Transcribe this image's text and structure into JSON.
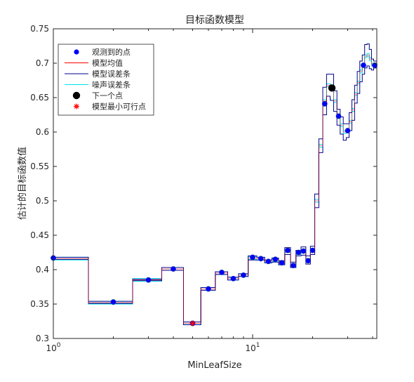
{
  "chart_data": {
    "type": "line",
    "title": "目标函数模型",
    "xlabel": "MinLeafSize",
    "ylabel": "估计的目标函数值",
    "xscale": "log",
    "xlim": [
      1,
      42
    ],
    "ylim": [
      0.3,
      0.75
    ],
    "x_ticks": [
      {
        "value": 1,
        "base": "10",
        "exp": "0"
      },
      {
        "value": 10,
        "base": "10",
        "exp": "1"
      }
    ],
    "y_ticks": [
      0.3,
      0.35,
      0.4,
      0.45,
      0.5,
      0.55,
      0.6,
      0.65,
      0.7,
      0.75
    ],
    "grid": false,
    "legend_position": "top-left",
    "legend": [
      {
        "label": "观测到的点",
        "marker": "dot",
        "color": "#0000ff"
      },
      {
        "label": "模型均值",
        "marker": "line",
        "color": "#ff0000"
      },
      {
        "label": "模型误差条",
        "marker": "line",
        "color": "#00008b"
      },
      {
        "label": "噪声误差条",
        "marker": "line",
        "color": "#00e5ee"
      },
      {
        "label": "下一个点",
        "marker": "bigdot",
        "color": "#000000"
      },
      {
        "label": "模型最小可行点",
        "marker": "star",
        "color": "#ff0000"
      }
    ],
    "series": [
      {
        "name": "观测到的点",
        "color": "#0000ff",
        "points": [
          [
            1,
            0.417
          ],
          [
            2,
            0.353
          ],
          [
            3,
            0.385
          ],
          [
            4,
            0.401
          ],
          [
            5,
            0.322
          ],
          [
            6,
            0.372
          ],
          [
            7,
            0.396
          ],
          [
            8,
            0.387
          ],
          [
            9,
            0.392
          ],
          [
            10,
            0.418
          ],
          [
            11,
            0.416
          ],
          [
            12,
            0.412
          ],
          [
            13,
            0.415
          ],
          [
            14,
            0.41
          ],
          [
            15,
            0.428
          ],
          [
            16,
            0.406
          ],
          [
            17,
            0.425
          ],
          [
            18,
            0.427
          ],
          [
            19,
            0.413
          ],
          [
            20,
            0.428
          ],
          [
            23,
            0.641
          ],
          [
            27,
            0.623
          ],
          [
            30,
            0.602
          ],
          [
            36,
            0.697
          ],
          [
            41,
            0.697
          ]
        ]
      },
      {
        "name": "模型均值",
        "color": "#ff0000",
        "steps": [
          [
            1,
            0.416
          ],
          [
            1.5,
            0.352
          ],
          [
            2.5,
            0.385
          ],
          [
            3.5,
            0.401
          ],
          [
            4.5,
            0.322
          ],
          [
            5.5,
            0.372
          ],
          [
            6.5,
            0.395
          ],
          [
            7.5,
            0.387
          ],
          [
            8.5,
            0.392
          ],
          [
            9.5,
            0.417
          ],
          [
            10.5,
            0.416
          ],
          [
            11.5,
            0.412
          ],
          [
            12.5,
            0.414
          ],
          [
            13.5,
            0.41
          ],
          [
            14.5,
            0.427
          ],
          [
            15.5,
            0.407
          ],
          [
            16.5,
            0.424
          ],
          [
            17.5,
            0.427
          ],
          [
            18.5,
            0.414
          ],
          [
            19.5,
            0.428
          ],
          [
            20.5,
            0.5
          ],
          [
            21.5,
            0.58
          ],
          [
            22.5,
            0.645
          ],
          [
            23.5,
            0.668
          ],
          [
            24.5,
            0.665
          ],
          [
            25.5,
            0.645
          ],
          [
            26.5,
            0.622
          ],
          [
            27.5,
            0.61
          ],
          [
            28.5,
            0.6
          ],
          [
            29.5,
            0.602
          ],
          [
            30.5,
            0.615
          ],
          [
            31.5,
            0.632
          ],
          [
            32.5,
            0.655
          ],
          [
            33.5,
            0.672
          ],
          [
            34.5,
            0.688
          ],
          [
            35.5,
            0.698
          ],
          [
            36.5,
            0.71
          ],
          [
            37.5,
            0.712
          ],
          [
            38.5,
            0.706
          ],
          [
            39.5,
            0.698
          ],
          [
            40.5,
            0.698
          ],
          [
            42,
            0.698
          ]
        ]
      },
      {
        "name": "模型误差条",
        "color": "#00008b",
        "upper": [
          [
            1,
            0.418
          ],
          [
            1.5,
            0.354
          ],
          [
            2.5,
            0.386
          ],
          [
            3.5,
            0.403
          ],
          [
            4.5,
            0.324
          ],
          [
            5.5,
            0.374
          ],
          [
            6.5,
            0.397
          ],
          [
            7.5,
            0.389
          ],
          [
            8.5,
            0.394
          ],
          [
            9.5,
            0.42
          ],
          [
            10.5,
            0.418
          ],
          [
            11.5,
            0.414
          ],
          [
            12.5,
            0.417
          ],
          [
            13.5,
            0.413
          ],
          [
            14.5,
            0.432
          ],
          [
            15.5,
            0.411
          ],
          [
            16.5,
            0.428
          ],
          [
            17.5,
            0.433
          ],
          [
            18.5,
            0.42
          ],
          [
            19.5,
            0.434
          ],
          [
            20.5,
            0.51
          ],
          [
            21.5,
            0.59
          ],
          [
            22.5,
            0.665
          ],
          [
            23.5,
            0.684
          ],
          [
            24.5,
            0.684
          ],
          [
            25.5,
            0.66
          ],
          [
            26.5,
            0.633
          ],
          [
            27.5,
            0.622
          ],
          [
            28.5,
            0.612
          ],
          [
            29.5,
            0.612
          ],
          [
            30.5,
            0.628
          ],
          [
            31.5,
            0.647
          ],
          [
            32.5,
            0.668
          ],
          [
            33.5,
            0.688
          ],
          [
            34.5,
            0.703
          ],
          [
            35.5,
            0.712
          ],
          [
            36.5,
            0.727
          ],
          [
            37.5,
            0.728
          ],
          [
            38.5,
            0.72
          ],
          [
            39.5,
            0.706
          ],
          [
            40.5,
            0.703
          ],
          [
            42,
            0.703
          ]
        ],
        "lower": [
          [
            1,
            0.415
          ],
          [
            1.5,
            0.351
          ],
          [
            2.5,
            0.384
          ],
          [
            3.5,
            0.399
          ],
          [
            4.5,
            0.32
          ],
          [
            5.5,
            0.37
          ],
          [
            6.5,
            0.393
          ],
          [
            7.5,
            0.385
          ],
          [
            8.5,
            0.39
          ],
          [
            9.5,
            0.414
          ],
          [
            10.5,
            0.414
          ],
          [
            11.5,
            0.41
          ],
          [
            12.5,
            0.411
          ],
          [
            13.5,
            0.407
          ],
          [
            14.5,
            0.422
          ],
          [
            15.5,
            0.403
          ],
          [
            16.5,
            0.42
          ],
          [
            17.5,
            0.421
          ],
          [
            18.5,
            0.408
          ],
          [
            19.5,
            0.422
          ],
          [
            20.5,
            0.49
          ],
          [
            21.5,
            0.57
          ],
          [
            22.5,
            0.625
          ],
          [
            23.5,
            0.652
          ],
          [
            24.5,
            0.646
          ],
          [
            25.5,
            0.63
          ],
          [
            26.5,
            0.61
          ],
          [
            27.5,
            0.597
          ],
          [
            28.5,
            0.588
          ],
          [
            29.5,
            0.592
          ],
          [
            30.5,
            0.602
          ],
          [
            31.5,
            0.617
          ],
          [
            32.5,
            0.642
          ],
          [
            33.5,
            0.656
          ],
          [
            34.5,
            0.673
          ],
          [
            35.5,
            0.684
          ],
          [
            36.5,
            0.693
          ],
          [
            37.5,
            0.696
          ],
          [
            38.5,
            0.692
          ],
          [
            39.5,
            0.69
          ],
          [
            40.5,
            0.693
          ],
          [
            42,
            0.693
          ]
        ]
      },
      {
        "name": "噪声误差条",
        "color": "#00e5ee",
        "upper": [
          [
            1,
            0.418
          ],
          [
            1.5,
            0.354
          ],
          [
            2.5,
            0.387
          ],
          [
            3.5,
            0.403
          ],
          [
            4.5,
            0.324
          ],
          [
            5.5,
            0.374
          ],
          [
            6.5,
            0.397
          ],
          [
            7.5,
            0.389
          ],
          [
            8.5,
            0.394
          ],
          [
            9.5,
            0.419
          ],
          [
            10.5,
            0.418
          ],
          [
            11.5,
            0.414
          ],
          [
            12.5,
            0.416
          ],
          [
            13.5,
            0.412
          ],
          [
            14.5,
            0.429
          ],
          [
            15.5,
            0.409
          ],
          [
            16.5,
            0.426
          ],
          [
            17.5,
            0.429
          ],
          [
            18.5,
            0.416
          ],
          [
            19.5,
            0.43
          ],
          [
            20.5,
            0.502
          ],
          [
            21.5,
            0.582
          ],
          [
            22.5,
            0.647
          ],
          [
            23.5,
            0.67
          ],
          [
            24.5,
            0.667
          ],
          [
            25.5,
            0.647
          ],
          [
            26.5,
            0.624
          ],
          [
            27.5,
            0.612
          ],
          [
            28.5,
            0.602
          ],
          [
            29.5,
            0.604
          ],
          [
            30.5,
            0.617
          ],
          [
            31.5,
            0.634
          ],
          [
            32.5,
            0.657
          ],
          [
            33.5,
            0.674
          ],
          [
            34.5,
            0.69
          ],
          [
            35.5,
            0.7
          ],
          [
            36.5,
            0.712
          ],
          [
            37.5,
            0.714
          ],
          [
            38.5,
            0.708
          ],
          [
            39.5,
            0.7
          ],
          [
            40.5,
            0.7
          ],
          [
            42,
            0.7
          ]
        ],
        "lower": [
          [
            1,
            0.414
          ],
          [
            1.5,
            0.35
          ],
          [
            2.5,
            0.383
          ],
          [
            3.5,
            0.399
          ],
          [
            4.5,
            0.32
          ],
          [
            5.5,
            0.37
          ],
          [
            6.5,
            0.393
          ],
          [
            7.5,
            0.385
          ],
          [
            8.5,
            0.39
          ],
          [
            9.5,
            0.415
          ],
          [
            10.5,
            0.414
          ],
          [
            11.5,
            0.41
          ],
          [
            12.5,
            0.412
          ],
          [
            13.5,
            0.408
          ],
          [
            14.5,
            0.425
          ],
          [
            15.5,
            0.405
          ],
          [
            16.5,
            0.422
          ],
          [
            17.5,
            0.425
          ],
          [
            18.5,
            0.412
          ],
          [
            19.5,
            0.426
          ],
          [
            20.5,
            0.498
          ],
          [
            21.5,
            0.578
          ],
          [
            22.5,
            0.643
          ],
          [
            23.5,
            0.666
          ],
          [
            24.5,
            0.663
          ],
          [
            25.5,
            0.643
          ],
          [
            26.5,
            0.62
          ],
          [
            27.5,
            0.608
          ],
          [
            28.5,
            0.598
          ],
          [
            29.5,
            0.6
          ],
          [
            30.5,
            0.613
          ],
          [
            31.5,
            0.63
          ],
          [
            32.5,
            0.653
          ],
          [
            33.5,
            0.67
          ],
          [
            34.5,
            0.686
          ],
          [
            35.5,
            0.696
          ],
          [
            36.5,
            0.708
          ],
          [
            37.5,
            0.71
          ],
          [
            38.5,
            0.704
          ],
          [
            39.5,
            0.696
          ],
          [
            40.5,
            0.696
          ],
          [
            42,
            0.696
          ]
        ]
      },
      {
        "name": "下一个点",
        "color": "#000000",
        "points": [
          [
            25,
            0.664
          ]
        ]
      },
      {
        "name": "模型最小可行点",
        "color": "#ff0000",
        "points": [
          [
            5,
            0.322
          ]
        ]
      }
    ]
  }
}
